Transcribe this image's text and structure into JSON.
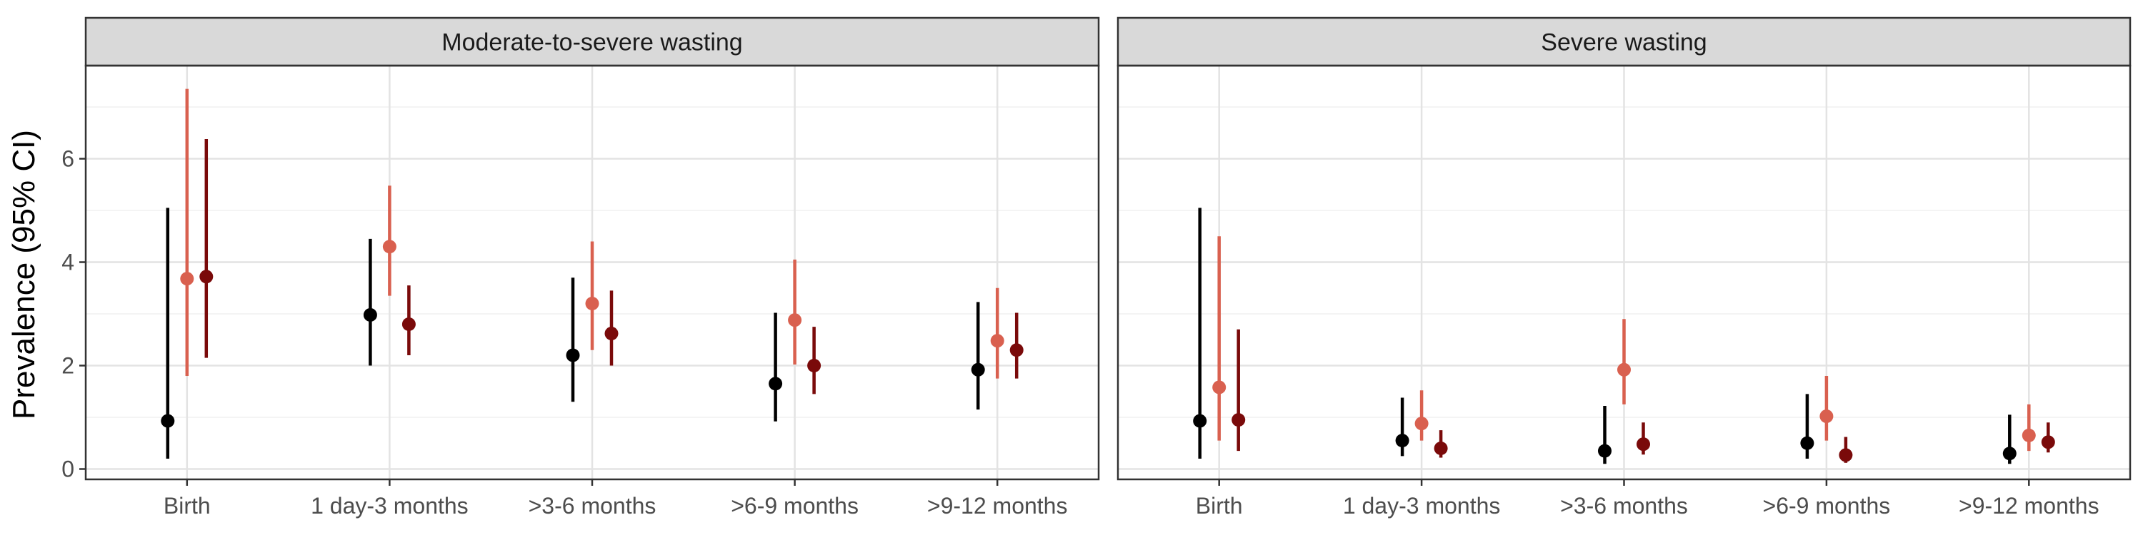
{
  "chart_data": {
    "type": "pointrange",
    "ylabel": "Prevalence (95% CI)",
    "ylim": [
      -0.2,
      7.8
    ],
    "yticks": [
      "0",
      "2",
      "4",
      "6"
    ],
    "grid": true,
    "categories": [
      "Birth",
      "1 day-3 months",
      ">3-6 months",
      ">6-9 months",
      ">9-12 months"
    ],
    "series_colors": [
      "#000000",
      "#d9604f",
      "#7a0a0a"
    ],
    "panels": [
      {
        "title": "Moderate-to-severe wasting",
        "series": [
          {
            "color": "#000000",
            "points": [
              {
                "x": "Birth",
                "y": 0.93,
                "lo": 0.2,
                "hi": 5.05
              },
              {
                "x": "1 day-3 months",
                "y": 2.98,
                "lo": 2.0,
                "hi": 4.45
              },
              {
                "x": ">3-6 months",
                "y": 2.2,
                "lo": 1.3,
                "hi": 3.7
              },
              {
                "x": ">6-9 months",
                "y": 1.65,
                "lo": 0.92,
                "hi": 3.02
              },
              {
                "x": ">9-12 months",
                "y": 1.92,
                "lo": 1.15,
                "hi": 3.23
              }
            ]
          },
          {
            "color": "#d9604f",
            "points": [
              {
                "x": "Birth",
                "y": 3.68,
                "lo": 1.8,
                "hi": 7.35
              },
              {
                "x": "1 day-3 months",
                "y": 4.3,
                "lo": 3.35,
                "hi": 5.48
              },
              {
                "x": ">3-6 months",
                "y": 3.2,
                "lo": 2.3,
                "hi": 4.4
              },
              {
                "x": ">6-9 months",
                "y": 2.88,
                "lo": 2.02,
                "hi": 4.05
              },
              {
                "x": ">9-12 months",
                "y": 2.48,
                "lo": 1.75,
                "hi": 3.5
              }
            ]
          },
          {
            "color": "#7a0a0a",
            "points": [
              {
                "x": "Birth",
                "y": 3.72,
                "lo": 2.15,
                "hi": 6.38
              },
              {
                "x": "1 day-3 months",
                "y": 2.8,
                "lo": 2.2,
                "hi": 3.55
              },
              {
                "x": ">3-6 months",
                "y": 2.62,
                "lo": 2.0,
                "hi": 3.45
              },
              {
                "x": ">6-9 months",
                "y": 2.0,
                "lo": 1.45,
                "hi": 2.75
              },
              {
                "x": ">9-12 months",
                "y": 2.3,
                "lo": 1.75,
                "hi": 3.02
              }
            ]
          }
        ]
      },
      {
        "title": "Severe wasting",
        "series": [
          {
            "color": "#000000",
            "points": [
              {
                "x": "Birth",
                "y": 0.93,
                "lo": 0.2,
                "hi": 5.05
              },
              {
                "x": "1 day-3 months",
                "y": 0.55,
                "lo": 0.25,
                "hi": 1.38
              },
              {
                "x": ">3-6 months",
                "y": 0.35,
                "lo": 0.1,
                "hi": 1.22
              },
              {
                "x": ">6-9 months",
                "y": 0.5,
                "lo": 0.2,
                "hi": 1.45
              },
              {
                "x": ">9-12 months",
                "y": 0.3,
                "lo": 0.1,
                "hi": 1.05
              }
            ]
          },
          {
            "color": "#d9604f",
            "points": [
              {
                "x": "Birth",
                "y": 1.58,
                "lo": 0.55,
                "hi": 4.5
              },
              {
                "x": "1 day-3 months",
                "y": 0.88,
                "lo": 0.55,
                "hi": 1.52
              },
              {
                "x": ">3-6 months",
                "y": 1.92,
                "lo": 1.25,
                "hi": 2.9
              },
              {
                "x": ">6-9 months",
                "y": 1.02,
                "lo": 0.55,
                "hi": 1.8
              },
              {
                "x": ">9-12 months",
                "y": 0.65,
                "lo": 0.35,
                "hi": 1.25
              }
            ]
          },
          {
            "color": "#7a0a0a",
            "points": [
              {
                "x": "Birth",
                "y": 0.95,
                "lo": 0.35,
                "hi": 2.7
              },
              {
                "x": "1 day-3 months",
                "y": 0.4,
                "lo": 0.22,
                "hi": 0.75
              },
              {
                "x": ">3-6 months",
                "y": 0.48,
                "lo": 0.28,
                "hi": 0.9
              },
              {
                "x": ">6-9 months",
                "y": 0.27,
                "lo": 0.12,
                "hi": 0.62
              },
              {
                "x": ">9-12 months",
                "y": 0.52,
                "lo": 0.32,
                "hi": 0.9
              }
            ]
          }
        ]
      }
    ]
  }
}
